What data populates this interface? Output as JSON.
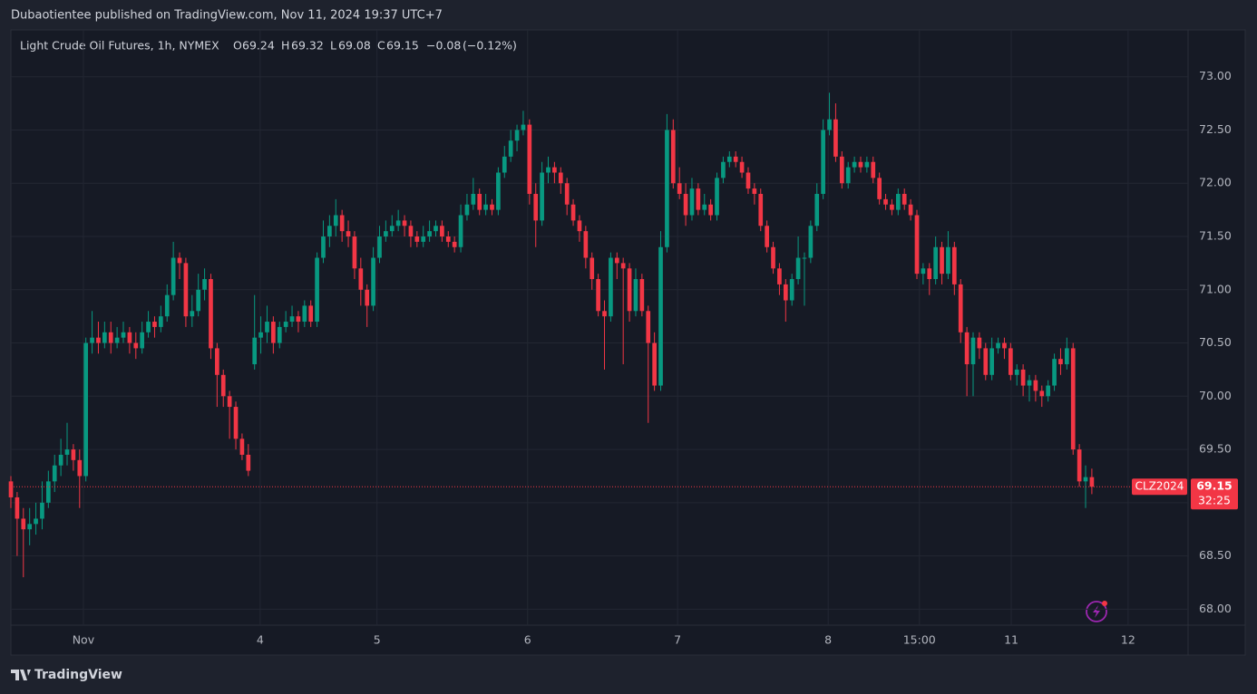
{
  "header": {
    "publisher": "Dubaotientee published on TradingView.com, Nov 11, 2024 19:37 UTC+7"
  },
  "footer": {
    "brand": "TradingView"
  },
  "chart_data": {
    "type": "candlestick",
    "title": "Light Crude Oil Futures, 1h, NYMEX",
    "ohlc_letters": [
      "O",
      "H",
      "L",
      "C"
    ],
    "change_label": "−0.08",
    "change_pct_label": "(−0.12%)",
    "symbol": "CLZ2024",
    "countdown": "32:25",
    "up_color": "#089981",
    "down_color": "#f23645",
    "grid": true,
    "xlim": [
      0,
      188.4
    ],
    "xticks": [
      {
        "value": 11.6,
        "label": "Nov"
      },
      {
        "value": 39.9,
        "label": "4"
      },
      {
        "value": 58.6,
        "label": "5"
      },
      {
        "value": 82.7,
        "label": "6"
      },
      {
        "value": 106.7,
        "label": "7"
      },
      {
        "value": 130.8,
        "label": "8"
      },
      {
        "value": 145.4,
        "label": "15:00"
      },
      {
        "value": 160.1,
        "label": "11"
      },
      {
        "value": 178.8,
        "label": "12"
      }
    ],
    "ylim": [
      67.85,
      73.44
    ],
    "yticks": [
      {
        "value": 68,
        "label": "68.00"
      },
      {
        "value": 68.5,
        "label": "68.50"
      },
      {
        "value": 69,
        "label": "69.00"
      },
      {
        "value": 69.5,
        "label": "69.50"
      },
      {
        "value": 70,
        "label": "70.00"
      },
      {
        "value": 70.5,
        "label": "70.50"
      },
      {
        "value": 71,
        "label": "71.00"
      },
      {
        "value": 71.5,
        "label": "71.50"
      },
      {
        "value": 72,
        "label": "72.00"
      },
      {
        "value": 72.5,
        "label": "72.50"
      },
      {
        "value": 73,
        "label": "73.00"
      }
    ],
    "candles": [
      [
        69.2,
        69.25,
        68.95,
        69.05
      ],
      [
        69.05,
        69.1,
        68.5,
        68.85
      ],
      [
        68.85,
        68.95,
        68.3,
        68.75
      ],
      [
        68.75,
        68.95,
        68.6,
        68.8
      ],
      [
        68.8,
        69.0,
        68.7,
        68.85
      ],
      [
        68.85,
        69.2,
        68.75,
        69.0
      ],
      [
        69.0,
        69.3,
        68.95,
        69.2
      ],
      [
        69.2,
        69.45,
        69.1,
        69.35
      ],
      [
        69.35,
        69.6,
        69.25,
        69.45
      ],
      [
        69.45,
        69.75,
        69.35,
        69.5
      ],
      [
        69.5,
        69.55,
        69.3,
        69.4
      ],
      [
        69.4,
        69.5,
        68.95,
        69.25
      ],
      [
        69.25,
        70.55,
        69.2,
        70.5
      ],
      [
        70.5,
        70.8,
        70.4,
        70.55
      ],
      [
        70.55,
        70.7,
        70.4,
        70.5
      ],
      [
        70.5,
        70.7,
        70.45,
        70.6
      ],
      [
        70.6,
        70.7,
        70.4,
        70.5
      ],
      [
        70.5,
        70.65,
        70.45,
        70.55
      ],
      [
        70.55,
        70.7,
        70.5,
        70.6
      ],
      [
        70.6,
        70.65,
        70.4,
        70.5
      ],
      [
        70.5,
        70.6,
        70.35,
        70.45
      ],
      [
        70.45,
        70.7,
        70.4,
        70.6
      ],
      [
        70.6,
        70.8,
        70.55,
        70.7
      ],
      [
        70.7,
        70.75,
        70.55,
        70.65
      ],
      [
        70.65,
        70.85,
        70.6,
        70.75
      ],
      [
        70.75,
        71.05,
        70.7,
        70.95
      ],
      [
        70.95,
        71.45,
        70.9,
        71.3
      ],
      [
        71.3,
        71.35,
        71.1,
        71.25
      ],
      [
        71.25,
        71.3,
        70.65,
        70.75
      ],
      [
        70.75,
        70.95,
        70.65,
        70.8
      ],
      [
        70.8,
        71.15,
        70.75,
        71.0
      ],
      [
        71.0,
        71.2,
        70.9,
        71.1
      ],
      [
        71.1,
        71.15,
        70.35,
        70.45
      ],
      [
        70.45,
        70.5,
        69.9,
        70.2
      ],
      [
        70.2,
        70.25,
        69.9,
        70.0
      ],
      [
        70.0,
        70.05,
        69.6,
        69.9
      ],
      [
        69.9,
        69.95,
        69.5,
        69.6
      ],
      [
        69.6,
        69.65,
        69.4,
        69.45
      ],
      [
        69.45,
        69.55,
        69.25,
        69.3
      ],
      [
        70.3,
        70.95,
        70.25,
        70.55
      ],
      [
        70.55,
        70.75,
        70.4,
        70.6
      ],
      [
        70.6,
        70.85,
        70.5,
        70.7
      ],
      [
        70.7,
        70.75,
        70.4,
        70.5
      ],
      [
        70.5,
        70.7,
        70.45,
        70.65
      ],
      [
        70.65,
        70.8,
        70.6,
        70.7
      ],
      [
        70.7,
        70.85,
        70.65,
        70.75
      ],
      [
        70.75,
        70.8,
        70.6,
        70.7
      ],
      [
        70.7,
        70.9,
        70.65,
        70.85
      ],
      [
        70.85,
        70.9,
        70.65,
        70.7
      ],
      [
        70.7,
        71.35,
        70.65,
        71.3
      ],
      [
        71.3,
        71.65,
        71.25,
        71.5
      ],
      [
        71.5,
        71.7,
        71.4,
        71.6
      ],
      [
        71.6,
        71.85,
        71.5,
        71.7
      ],
      [
        71.7,
        71.75,
        71.45,
        71.55
      ],
      [
        71.55,
        71.65,
        71.4,
        71.5
      ],
      [
        71.5,
        71.55,
        71.1,
        71.2
      ],
      [
        71.2,
        71.3,
        70.85,
        71.0
      ],
      [
        71.0,
        71.05,
        70.65,
        70.85
      ],
      [
        70.85,
        71.4,
        70.8,
        71.3
      ],
      [
        71.3,
        71.6,
        71.25,
        71.5
      ],
      [
        71.5,
        71.65,
        71.45,
        71.55
      ],
      [
        71.55,
        71.7,
        71.5,
        71.6
      ],
      [
        71.6,
        71.75,
        71.55,
        71.65
      ],
      [
        71.65,
        71.7,
        71.5,
        71.6
      ],
      [
        71.6,
        71.65,
        71.4,
        71.5
      ],
      [
        71.5,
        71.55,
        71.4,
        71.45
      ],
      [
        71.45,
        71.6,
        71.4,
        71.5
      ],
      [
        71.5,
        71.65,
        71.45,
        71.55
      ],
      [
        71.55,
        71.65,
        71.5,
        71.6
      ],
      [
        71.6,
        71.65,
        71.45,
        71.5
      ],
      [
        71.5,
        71.55,
        71.4,
        71.45
      ],
      [
        71.45,
        71.5,
        71.35,
        71.4
      ],
      [
        71.4,
        71.8,
        71.35,
        71.7
      ],
      [
        71.7,
        71.9,
        71.65,
        71.8
      ],
      [
        71.8,
        72.05,
        71.75,
        71.9
      ],
      [
        71.9,
        71.95,
        71.7,
        71.75
      ],
      [
        71.75,
        71.9,
        71.7,
        71.8
      ],
      [
        71.8,
        71.85,
        71.7,
        71.75
      ],
      [
        71.75,
        72.15,
        71.7,
        72.1
      ],
      [
        72.1,
        72.35,
        72.05,
        72.25
      ],
      [
        72.25,
        72.5,
        72.2,
        72.4
      ],
      [
        72.4,
        72.55,
        72.3,
        72.5
      ],
      [
        72.5,
        72.68,
        72.45,
        72.55
      ],
      [
        72.55,
        72.6,
        71.8,
        71.9
      ],
      [
        71.9,
        72.0,
        71.4,
        71.65
      ],
      [
        71.65,
        72.2,
        71.6,
        72.1
      ],
      [
        72.1,
        72.25,
        72.0,
        72.15
      ],
      [
        72.15,
        72.2,
        72.0,
        72.1
      ],
      [
        72.1,
        72.15,
        71.9,
        72.0
      ],
      [
        72.0,
        72.05,
        71.7,
        71.8
      ],
      [
        71.8,
        71.85,
        71.6,
        71.65
      ],
      [
        71.65,
        71.7,
        71.45,
        71.55
      ],
      [
        71.55,
        71.6,
        71.2,
        71.3
      ],
      [
        71.3,
        71.35,
        71.0,
        71.1
      ],
      [
        71.1,
        71.15,
        70.75,
        70.8
      ],
      [
        70.8,
        70.9,
        70.25,
        70.75
      ],
      [
        70.75,
        71.35,
        70.7,
        71.3
      ],
      [
        71.3,
        71.35,
        71.1,
        71.25
      ],
      [
        71.25,
        71.3,
        70.3,
        71.2
      ],
      [
        71.2,
        71.25,
        70.7,
        70.8
      ],
      [
        70.8,
        71.2,
        70.75,
        71.1
      ],
      [
        71.1,
        71.15,
        70.75,
        70.8
      ],
      [
        70.8,
        70.85,
        69.75,
        70.5
      ],
      [
        70.5,
        70.6,
        70.05,
        70.1
      ],
      [
        70.1,
        71.55,
        70.05,
        71.4
      ],
      [
        71.4,
        72.65,
        71.35,
        72.5
      ],
      [
        72.5,
        72.6,
        71.95,
        72.0
      ],
      [
        72.0,
        72.15,
        71.85,
        71.9
      ],
      [
        71.9,
        72.0,
        71.6,
        71.7
      ],
      [
        71.7,
        72.05,
        71.65,
        71.95
      ],
      [
        71.95,
        72.0,
        71.7,
        71.75
      ],
      [
        71.75,
        71.9,
        71.7,
        71.8
      ],
      [
        71.8,
        71.85,
        71.65,
        71.7
      ],
      [
        71.7,
        72.1,
        71.65,
        72.05
      ],
      [
        72.05,
        72.25,
        72.0,
        72.2
      ],
      [
        72.2,
        72.3,
        72.15,
        72.25
      ],
      [
        72.25,
        72.3,
        72.15,
        72.2
      ],
      [
        72.2,
        72.25,
        72.05,
        72.1
      ],
      [
        72.1,
        72.15,
        71.9,
        71.95
      ],
      [
        71.95,
        72.0,
        71.8,
        71.9
      ],
      [
        71.9,
        71.95,
        71.55,
        71.6
      ],
      [
        71.6,
        71.65,
        71.35,
        71.4
      ],
      [
        71.4,
        71.45,
        71.15,
        71.2
      ],
      [
        71.2,
        71.25,
        70.95,
        71.05
      ],
      [
        71.05,
        71.1,
        70.7,
        70.9
      ],
      [
        70.9,
        71.15,
        70.85,
        71.1
      ],
      [
        71.1,
        71.5,
        71.05,
        71.3
      ],
      [
        71.3,
        71.35,
        70.85,
        71.3
      ],
      [
        71.3,
        71.65,
        71.25,
        71.6
      ],
      [
        71.6,
        72.0,
        71.55,
        71.9
      ],
      [
        71.9,
        72.6,
        71.85,
        72.5
      ],
      [
        72.5,
        72.85,
        72.45,
        72.6
      ],
      [
        72.6,
        72.75,
        72.2,
        72.25
      ],
      [
        72.25,
        72.3,
        71.95,
        72.0
      ],
      [
        72.0,
        72.2,
        71.95,
        72.15
      ],
      [
        72.15,
        72.25,
        72.1,
        72.2
      ],
      [
        72.2,
        72.25,
        72.1,
        72.15
      ],
      [
        72.15,
        72.25,
        72.1,
        72.2
      ],
      [
        72.2,
        72.25,
        72.0,
        72.05
      ],
      [
        72.05,
        72.1,
        71.8,
        71.85
      ],
      [
        71.85,
        71.9,
        71.75,
        71.8
      ],
      [
        71.8,
        71.85,
        71.7,
        71.75
      ],
      [
        71.75,
        71.95,
        71.7,
        71.9
      ],
      [
        71.9,
        71.95,
        71.75,
        71.8
      ],
      [
        71.8,
        71.85,
        71.65,
        71.7
      ],
      [
        71.7,
        71.75,
        71.1,
        71.15
      ],
      [
        71.15,
        71.25,
        71.05,
        71.2
      ],
      [
        71.2,
        71.25,
        70.95,
        71.1
      ],
      [
        71.1,
        71.5,
        71.05,
        71.4
      ],
      [
        71.4,
        71.45,
        71.05,
        71.15
      ],
      [
        71.15,
        71.55,
        71.1,
        71.4
      ],
      [
        71.4,
        71.45,
        70.95,
        71.05
      ],
      [
        71.05,
        71.1,
        70.5,
        70.6
      ],
      [
        70.6,
        70.65,
        70.0,
        70.3
      ],
      [
        70.3,
        70.6,
        70.0,
        70.55
      ],
      [
        70.55,
        70.6,
        70.35,
        70.45
      ],
      [
        70.45,
        70.5,
        70.15,
        70.2
      ],
      [
        70.2,
        70.55,
        70.15,
        70.45
      ],
      [
        70.45,
        70.55,
        70.4,
        70.5
      ],
      [
        70.5,
        70.55,
        70.35,
        70.45
      ],
      [
        70.45,
        70.5,
        70.15,
        70.2
      ],
      [
        70.2,
        70.3,
        70.1,
        70.25
      ],
      [
        70.25,
        70.3,
        70.0,
        70.1
      ],
      [
        70.1,
        70.2,
        69.95,
        70.15
      ],
      [
        70.15,
        70.2,
        69.95,
        70.05
      ],
      [
        70.05,
        70.1,
        69.9,
        70.0
      ],
      [
        70.0,
        70.15,
        69.95,
        70.1
      ],
      [
        70.1,
        70.4,
        70.05,
        70.35
      ],
      [
        70.35,
        70.45,
        70.2,
        70.3
      ],
      [
        70.3,
        70.55,
        70.25,
        70.45
      ],
      [
        70.45,
        70.5,
        69.45,
        69.5
      ],
      [
        69.5,
        69.55,
        69.15,
        69.2
      ],
      [
        69.2,
        69.35,
        68.95,
        69.24
      ],
      [
        69.24,
        69.32,
        69.08,
        69.15
      ]
    ]
  }
}
